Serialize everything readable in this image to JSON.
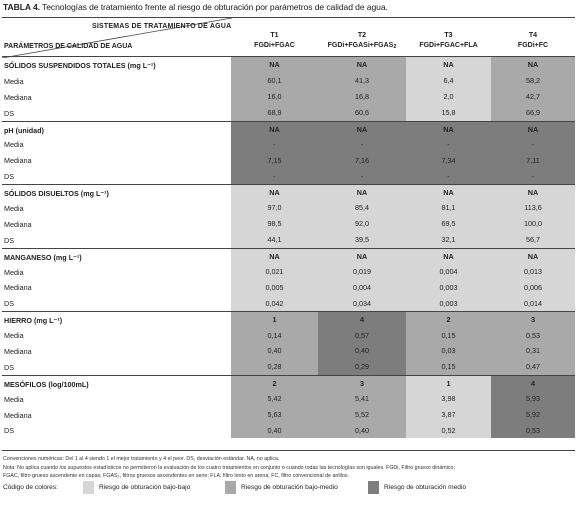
{
  "caption": {
    "prefix": "TABLA 4.",
    "text": " Tecnologías de tratamiento frente al riesgo de obturación por parámetros de calidad de agua."
  },
  "header": {
    "systems_label": "SISTEMAS DE TRATAMIENTO DE AGUA",
    "params_label": "PARÁMETROS DE CALIDAD DE AGUA",
    "columns": [
      {
        "code": "T1",
        "desc": "FGDi+FGAC"
      },
      {
        "code": "T2",
        "desc": "FGDi+FGASi+FGAS",
        "sub": "2"
      },
      {
        "code": "T3",
        "desc": "FGDi+FGAC+FLA"
      },
      {
        "code": "T4",
        "desc": "FGDi+FC"
      }
    ]
  },
  "colors": {
    "low": "#d6d6d6",
    "mid": "#a9a9a9",
    "medium": "#7d7d7d",
    "rule": "#444444"
  },
  "rows": [
    {
      "label": "SÓLIDOS SUSPENDIDOS TOTALES (mg L⁻¹)",
      "title": true,
      "values": [
        "NA",
        "NA",
        "NA",
        "NA"
      ],
      "shades": [
        "mid",
        "mid",
        "low",
        "mid"
      ]
    },
    {
      "label": "Media",
      "values": [
        "60,1",
        "41,3",
        "6,4",
        "58,2"
      ],
      "shades": [
        "mid",
        "mid",
        "low",
        "mid"
      ]
    },
    {
      "label": "Mediana",
      "values": [
        "16,0",
        "16,8",
        "2,0",
        "42,7"
      ],
      "shades": [
        "mid",
        "mid",
        "low",
        "mid"
      ]
    },
    {
      "label": "DS",
      "values": [
        "68,9",
        "60,6",
        "15,8",
        "66,9"
      ],
      "shades": [
        "mid",
        "mid",
        "low",
        "mid"
      ]
    },
    {
      "label": "pH (unidad)",
      "title": true,
      "values": [
        "NA",
        "NA",
        "NA",
        "NA"
      ],
      "shades": [
        "medium",
        "medium",
        "medium",
        "medium"
      ]
    },
    {
      "label": "Media",
      "values": [
        "-",
        "-",
        "-",
        "-"
      ],
      "shades": [
        "medium",
        "medium",
        "medium",
        "medium"
      ]
    },
    {
      "label": "Mediana",
      "values": [
        "7,15",
        "7,16",
        "7,34",
        "7,11"
      ],
      "shades": [
        "medium",
        "medium",
        "medium",
        "medium"
      ]
    },
    {
      "label": "DS",
      "values": [
        "-",
        "-",
        "-",
        "-"
      ],
      "shades": [
        "medium",
        "medium",
        "medium",
        "medium"
      ]
    },
    {
      "label": "SÓLIDOS DISUELTOS (mg L⁻¹)",
      "title": true,
      "values": [
        "NA",
        "NA",
        "NA",
        "NA"
      ],
      "shades": [
        "low",
        "low",
        "low",
        "low"
      ]
    },
    {
      "label": "Media",
      "values": [
        "97,0",
        "85,4",
        "81,1",
        "113,6"
      ],
      "shades": [
        "low",
        "low",
        "low",
        "low"
      ]
    },
    {
      "label": "Mediana",
      "values": [
        "98,5",
        "92,0",
        "69,5",
        "100,0"
      ],
      "shades": [
        "low",
        "low",
        "low",
        "low"
      ]
    },
    {
      "label": "DS",
      "values": [
        "44,1",
        "39,5",
        "32,1",
        "56,7"
      ],
      "shades": [
        "low",
        "low",
        "low",
        "low"
      ]
    },
    {
      "label": "MANGANESO (mg L⁻¹)",
      "title": true,
      "values": [
        "NA",
        "NA",
        "NA",
        "NA"
      ],
      "shades": [
        "low",
        "low",
        "low",
        "low"
      ]
    },
    {
      "label": "Media",
      "values": [
        "0,021",
        "0,019",
        "0,004",
        "0,013"
      ],
      "shades": [
        "low",
        "low",
        "low",
        "low"
      ]
    },
    {
      "label": "Mediana",
      "values": [
        "0,005",
        "0,004",
        "0,003",
        "0,006"
      ],
      "shades": [
        "low",
        "low",
        "low",
        "low"
      ]
    },
    {
      "label": "DS",
      "values": [
        "0,042",
        "0,034",
        "0,003",
        "0,014"
      ],
      "shades": [
        "low",
        "low",
        "low",
        "low"
      ]
    },
    {
      "label": "HIERRO (mg L⁻¹)",
      "title": true,
      "values": [
        "1",
        "4",
        "2",
        "3"
      ],
      "shades": [
        "mid",
        "medium",
        "mid",
        "mid"
      ]
    },
    {
      "label": "Media",
      "values": [
        "0,14",
        "0,57",
        "0,15",
        "0,53"
      ],
      "shades": [
        "mid",
        "medium",
        "mid",
        "mid"
      ]
    },
    {
      "label": "Mediana",
      "values": [
        "0,40",
        "0,40",
        "0,03",
        "0,31"
      ],
      "shades": [
        "mid",
        "medium",
        "mid",
        "mid"
      ]
    },
    {
      "label": "DS",
      "values": [
        "0,28",
        "0,29",
        "0,15",
        "0,47"
      ],
      "shades": [
        "mid",
        "medium",
        "mid",
        "mid"
      ]
    },
    {
      "label": "MESÓFILOS (log/100mL)",
      "title": true,
      "values": [
        "2",
        "3",
        "1",
        "4"
      ],
      "shades": [
        "mid",
        "mid",
        "low",
        "medium"
      ]
    },
    {
      "label": "Media",
      "values": [
        "5,42",
        "5,41",
        "3,98",
        "5,93"
      ],
      "shades": [
        "mid",
        "mid",
        "low",
        "medium"
      ]
    },
    {
      "label": "Mediana",
      "values": [
        "5,63",
        "5,52",
        "3,87",
        "5,92"
      ],
      "shades": [
        "mid",
        "mid",
        "low",
        "medium"
      ]
    },
    {
      "label": "DS",
      "values": [
        "0,40",
        "0,40",
        "0,52",
        "0,53"
      ],
      "shades": [
        "mid",
        "mid",
        "low",
        "medium"
      ]
    }
  ],
  "notes": {
    "line1": "Convenciones numéricas: Del 1 al 4 siendo 1 el mejor tratamiento y 4 el peor. DS, desviación estándar. NA, no aplica.",
    "line2": "Nota: No aplica cuando los supuestos estadísticos no permitieron la evaluación de los cuatro tratamientos en conjunto o cuando todas las tecnologías son iguales. FGDi, Filtro grueso dinámico;",
    "line3": "FGAC, filtro grueso ascendente en capas; FGAS₂, filtros gruesos ascendentes en serie; FLA, filtro lento en arena; FC, filtro convencional de anillos."
  },
  "legend": {
    "label": "Código de colores:",
    "items": [
      {
        "text": "Riesgo de obturación bajo-bajo",
        "color": "#d6d6d6"
      },
      {
        "text": "Riesgo de obturación bajo-medio",
        "color": "#a9a9a9"
      },
      {
        "text": "Riesgo de obturación medio",
        "color": "#7d7d7d"
      }
    ]
  }
}
